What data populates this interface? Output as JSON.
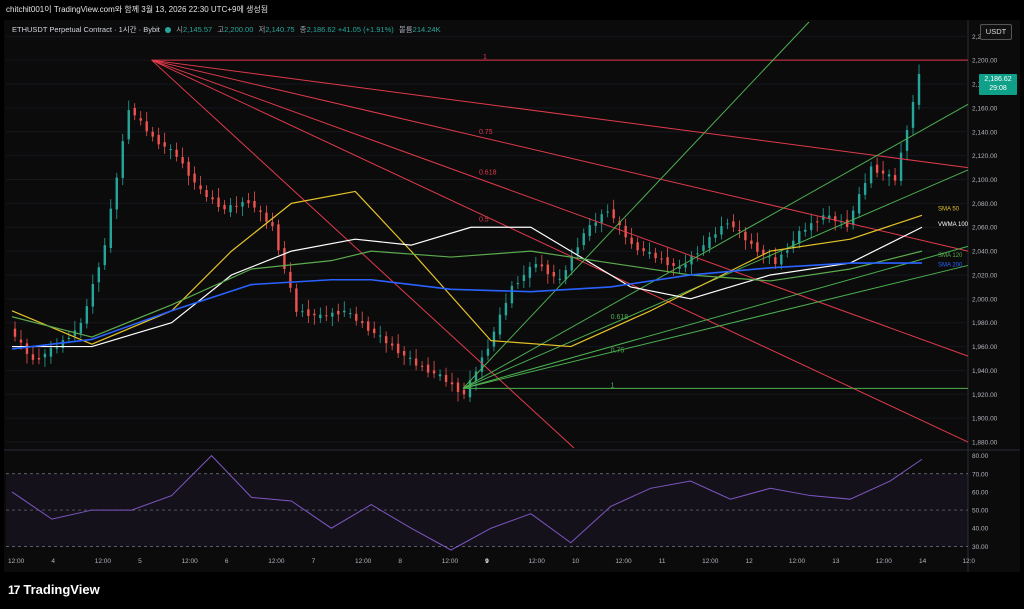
{
  "header": {
    "capture_line": "chitchit001이 TradingView.com와 함께 3월 13, 2026 22:30 UTC+9에 생성됨"
  },
  "legend": {
    "symbol": "ETHUSDT Perpetual Contract · 1시간 · Bybit",
    "open_label": "시",
    "open": "2,145.57",
    "high_label": "고",
    "high": "2,200.00",
    "low_label": "저",
    "low": "2,140.75",
    "close_label": "종",
    "close": "2,186.62",
    "change": "+41.05 (+1.91%)",
    "volume_label": "볼륨",
    "volume": "214.24K"
  },
  "currency_button": "USDT",
  "price_tag": {
    "price": "2,186.62",
    "countdown": "29:08"
  },
  "brand": {
    "name": "TradingView"
  },
  "colors": {
    "up": "#26a69a",
    "down": "#ef5350",
    "fan_red": "#e03a4a",
    "fan_green": "#4caf50",
    "sma50": "#e6c229",
    "vwma100": "#ffffff",
    "sma120": "#5cab4e",
    "sma200": "#2962ff",
    "rsi": "#7e57c2",
    "background": "#0b0b0c"
  },
  "chart_data": {
    "type": "line",
    "title": "",
    "y_axis": {
      "ticks": [
        "2,220.00",
        "2,200.00",
        "2,180.00",
        "2,160.00",
        "2,140.00",
        "2,120.00",
        "2,100.00",
        "2,080.00",
        "2,060.00",
        "2,040.00",
        "2,020.00",
        "2,000.00",
        "1,980.00",
        "1,960.00",
        "1,940.00",
        "1,920.00",
        "1,900.00",
        "1,880.00"
      ],
      "range": [
        1875,
        2232
      ]
    },
    "x_axis": {
      "ticks": [
        "12:00",
        "4",
        "12:00",
        "5",
        "12:00",
        "6",
        "12:00",
        "7",
        "12:00",
        "8",
        "12:00",
        "9",
        "12:00",
        "10",
        "12:00",
        "11",
        "12:00",
        "12",
        "12:00",
        "13",
        "12:00",
        "14",
        "12:0"
      ],
      "highlight_tick": "9"
    },
    "price_series": {
      "name": "ETHUSDT",
      "x": [
        0,
        6,
        12,
        18,
        24,
        30,
        36,
        42,
        48,
        54,
        60,
        66,
        72,
        78,
        84,
        90,
        96,
        102,
        108,
        114,
        120,
        126,
        132,
        138,
        144,
        150,
        156,
        162,
        168,
        174,
        180,
        186,
        192,
        198,
        204,
        210,
        216,
        222,
        228
      ],
      "close": [
        1975,
        1948,
        1960,
        1978,
        2045,
        2160,
        2135,
        2120,
        2090,
        2075,
        2082,
        2060,
        1990,
        1985,
        1990,
        1975,
        1960,
        1945,
        1935,
        1920,
        1960,
        2010,
        2030,
        2015,
        2055,
        2075,
        2045,
        2035,
        2025,
        2045,
        2065,
        2045,
        2030,
        2055,
        2070,
        2062,
        2110,
        2100,
        2186.62
      ]
    },
    "indicators": [
      {
        "name": "SMA 50",
        "x": [
          0,
          20,
          40,
          55,
          70,
          86,
          100,
          120,
          140,
          160,
          190,
          210,
          228
        ],
        "y": [
          1990,
          1962,
          1990,
          2040,
          2080,
          2090,
          2040,
          1965,
          1960,
          1990,
          2040,
          2050,
          2070
        ]
      },
      {
        "name": "VWMA 100",
        "x": [
          0,
          20,
          40,
          55,
          70,
          86,
          100,
          115,
          130,
          140,
          155,
          170,
          190,
          210,
          228
        ],
        "y": [
          1960,
          1960,
          1980,
          2020,
          2040,
          2050,
          2045,
          2060,
          2060,
          2040,
          2010,
          2000,
          2020,
          2030,
          2060
        ]
      },
      {
        "name": "SMA 120",
        "x": [
          0,
          20,
          40,
          60,
          80,
          90,
          110,
          130,
          150,
          170,
          190,
          210,
          228
        ],
        "y": [
          1985,
          1968,
          1995,
          2025,
          2032,
          2040,
          2035,
          2040,
          2030,
          2020,
          2015,
          2025,
          2040
        ]
      },
      {
        "name": "SMA 200",
        "x": [
          0,
          20,
          40,
          60,
          80,
          90,
          110,
          130,
          150,
          170,
          190,
          210,
          228
        ],
        "y": [
          1958,
          1966,
          1990,
          2012,
          2016,
          2016,
          2008,
          2006,
          2010,
          2020,
          2026,
          2030,
          2030
        ]
      }
    ],
    "fib_fan_red": {
      "labels": [
        "1",
        "0.75",
        "0.618",
        "0.5"
      ],
      "anchor_price": 2200
    },
    "fib_fan_green": {
      "labels": [
        "0.618",
        "0.75",
        "1"
      ],
      "anchor_price": 1925
    },
    "rsi": {
      "ticks": [
        "80.00",
        "70.00",
        "60.00",
        "50.00",
        "40.00",
        "30.00"
      ],
      "range": [
        28,
        82
      ],
      "band": [
        30,
        70
      ],
      "x": [
        0,
        10,
        20,
        30,
        40,
        50,
        60,
        70,
        80,
        90,
        100,
        110,
        120,
        130,
        140,
        150,
        160,
        170,
        180,
        190,
        200,
        210,
        220,
        228
      ],
      "values": [
        60,
        45,
        50,
        50,
        58,
        80,
        57,
        55,
        40,
        53,
        40,
        28,
        40,
        48,
        32,
        52,
        62,
        66,
        56,
        62,
        58,
        56,
        66,
        78
      ]
    }
  }
}
